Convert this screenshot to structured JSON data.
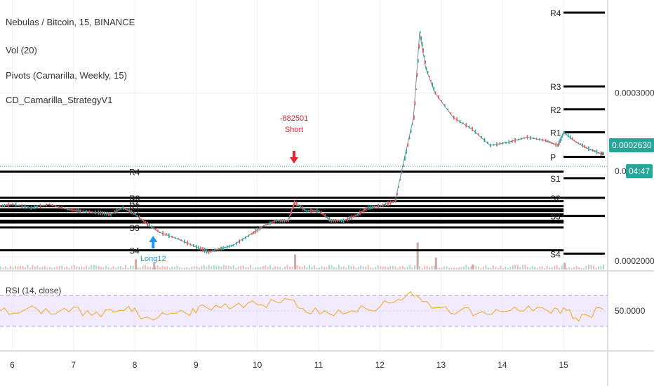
{
  "legend": {
    "title": "Nebulas / Bitcoin, 15, BINANCE",
    "vol": "Vol (20)",
    "pivots": "Pivots (Camarilla, Weekly, 15)",
    "strategy": "CD_Camarilla_StrategyV1",
    "rsi": "RSI (14, close)"
  },
  "price_tag": "0.0002630",
  "timer_tag": "04:47",
  "colors": {
    "tag_bg": "#26a69a",
    "candle_up": "#26a69a",
    "candle_down": "#ef5350",
    "rsi_line": "#f5a623",
    "rsi_band": "#e9ddfb",
    "pivot_line": "#000000",
    "short_signal": "#e8232f",
    "long_signal": "#2196f3"
  },
  "chart_data": {
    "type": "line",
    "series_name": "",
    "x_tick_labels": [
      "6",
      "7",
      "8",
      "9",
      "10",
      "11",
      "12",
      "13",
      "14",
      "15"
    ],
    "price_axis_labels": [
      "0.0003000",
      "0.0002000",
      "0.00"
    ],
    "rsi_axis_label": "50.0000",
    "price_series": [
      [
        5.8,
        0.000231
      ],
      [
        6.0,
        0.000232
      ],
      [
        6.3,
        0.00023
      ],
      [
        6.6,
        0.000232
      ],
      [
        6.9,
        0.000229
      ],
      [
        7.1,
        0.000228
      ],
      [
        7.4,
        0.000227
      ],
      [
        7.6,
        0.000226
      ],
      [
        7.8,
        0.00023
      ],
      [
        8.0,
        0.000226
      ],
      [
        8.2,
        0.00022
      ],
      [
        8.4,
        0.000215
      ],
      [
        8.7,
        0.000211
      ],
      [
        9.0,
        0.000206
      ],
      [
        9.2,
        0.000203
      ],
      [
        9.4,
        0.000205
      ],
      [
        9.6,
        0.000207
      ],
      [
        9.9,
        0.000214
      ],
      [
        10.1,
        0.000219
      ],
      [
        10.3,
        0.000222
      ],
      [
        10.5,
        0.000222
      ],
      [
        10.6,
        0.000233
      ],
      [
        10.8,
        0.000228
      ],
      [
        11.0,
        0.000228
      ],
      [
        11.2,
        0.000222
      ],
      [
        11.4,
        0.000222
      ],
      [
        11.6,
        0.000225
      ],
      [
        11.8,
        0.00023
      ],
      [
        12.0,
        0.000231
      ],
      [
        12.25,
        0.000234
      ],
      [
        12.4,
        0.00026
      ],
      [
        12.55,
        0.000285
      ],
      [
        12.65,
        0.000337
      ],
      [
        12.75,
        0.000315
      ],
      [
        12.9,
        0.0003
      ],
      [
        13.2,
        0.000285
      ],
      [
        13.5,
        0.000278
      ],
      [
        13.8,
        0.000268
      ],
      [
        14.1,
        0.00027
      ],
      [
        14.4,
        0.000273
      ],
      [
        14.7,
        0.000271
      ],
      [
        14.9,
        0.000268
      ],
      [
        15.0,
        0.000276
      ],
      [
        15.2,
        0.00027
      ],
      [
        15.4,
        0.000266
      ],
      [
        15.6,
        0.000263
      ],
      [
        15.65,
        0.000263
      ]
    ],
    "volume_spikes": [
      [
        8.0,
        6
      ],
      [
        8.3,
        4
      ],
      [
        10.6,
        9
      ],
      [
        12.6,
        16
      ],
      [
        12.9,
        7
      ],
      [
        13.5,
        3
      ],
      [
        15.0,
        4
      ]
    ],
    "pivots": [
      {
        "week": "prior",
        "x_start": 5.8,
        "x_end": 15.0,
        "levels": [
          {
            "label": "R4",
            "value": 0.000252
          },
          {
            "label": "R3",
            "value": 0.000236
          },
          {
            "label": "R2",
            "value": 0.000234
          },
          {
            "label": "R1",
            "value": 0.000231
          },
          {
            "label": "",
            "value": 0.000229
          },
          {
            "label": "S1",
            "value": 0.000228
          },
          {
            "label": "",
            "value": 0.000226
          },
          {
            "label": "",
            "value": 0.000225
          },
          {
            "label": "",
            "value": 0.000222
          },
          {
            "label": "S3",
            "value": 0.000218
          },
          {
            "label": "",
            "value": 0.000221
          },
          {
            "label": "S4",
            "value": 0.000204
          }
        ]
      },
      {
        "week": "current",
        "x_start": 15.0,
        "x_end": 15.65,
        "levels": [
          {
            "label": "R4",
            "value": 0.000349
          },
          {
            "label": "R3",
            "value": 0.000304
          },
          {
            "label": "R2",
            "value": 0.00029
          },
          {
            "label": "R1",
            "value": 0.000276
          },
          {
            "label": "P",
            "value": 0.000261
          },
          {
            "label": "S1",
            "value": 0.000248
          },
          {
            "label": "S2",
            "value": 0.000236
          },
          {
            "label": "S3",
            "value": 0.000225
          },
          {
            "label": "S4",
            "value": 0.000202
          }
        ]
      }
    ],
    "signals": [
      {
        "type": "short",
        "x": 10.6,
        "value_label": "-882501",
        "label": "Short"
      },
      {
        "type": "long",
        "x": 8.3,
        "label": "Long12"
      }
    ],
    "rsi_levels": {
      "upper": 70,
      "lower": 30,
      "mid": 50
    },
    "rsi_series": [
      [
        5.8,
        50
      ],
      [
        6.1,
        47
      ],
      [
        6.4,
        53
      ],
      [
        6.7,
        46
      ],
      [
        7.0,
        55
      ],
      [
        7.3,
        44
      ],
      [
        7.6,
        52
      ],
      [
        7.9,
        56
      ],
      [
        8.1,
        40
      ],
      [
        8.3,
        38
      ],
      [
        8.6,
        47
      ],
      [
        8.9,
        44
      ],
      [
        9.1,
        58
      ],
      [
        9.4,
        54
      ],
      [
        9.7,
        60
      ],
      [
        10.0,
        58
      ],
      [
        10.3,
        62
      ],
      [
        10.6,
        64
      ],
      [
        10.8,
        48
      ],
      [
        11.1,
        50
      ],
      [
        11.4,
        46
      ],
      [
        11.7,
        57
      ],
      [
        12.0,
        55
      ],
      [
        12.3,
        65
      ],
      [
        12.5,
        75
      ],
      [
        12.7,
        62
      ],
      [
        13.0,
        54
      ],
      [
        13.3,
        50
      ],
      [
        13.6,
        47
      ],
      [
        13.9,
        52
      ],
      [
        14.2,
        55
      ],
      [
        14.5,
        50
      ],
      [
        14.8,
        47
      ],
      [
        15.0,
        54
      ],
      [
        15.2,
        41
      ],
      [
        15.4,
        44
      ],
      [
        15.65,
        52
      ]
    ]
  }
}
